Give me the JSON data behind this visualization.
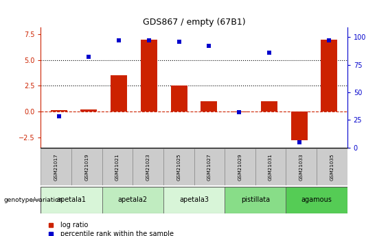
{
  "title": "GDS867 / empty (67B1)",
  "samples": [
    "GSM21017",
    "GSM21019",
    "GSM21021",
    "GSM21023",
    "GSM21025",
    "GSM21027",
    "GSM21029",
    "GSM21031",
    "GSM21033",
    "GSM21035"
  ],
  "log_ratio": [
    0.1,
    0.2,
    3.5,
    7.0,
    2.5,
    1.0,
    -0.05,
    1.0,
    -2.8,
    7.0
  ],
  "percentile_rank": [
    28,
    82,
    97,
    97,
    96,
    92,
    32,
    86,
    5,
    97
  ],
  "groups": [
    {
      "label": "apetala1",
      "indices": [
        0,
        1
      ],
      "color": "#d8f5d8"
    },
    {
      "label": "apetala2",
      "indices": [
        2,
        3
      ],
      "color": "#c0ecc0"
    },
    {
      "label": "apetala3",
      "indices": [
        4,
        5
      ],
      "color": "#d8f5d8"
    },
    {
      "label": "pistillata",
      "indices": [
        6,
        7
      ],
      "color": "#88dd88"
    },
    {
      "label": "agamous",
      "indices": [
        8,
        9
      ],
      "color": "#55cc55"
    }
  ],
  "bar_color": "#cc2200",
  "dot_color": "#0000cc",
  "ylim_left": [
    -3.5,
    8.2
  ],
  "ylim_right": [
    0,
    109
  ],
  "yticks_left": [
    -2.5,
    0.0,
    2.5,
    5.0,
    7.5
  ],
  "yticks_right": [
    0,
    25,
    50,
    75,
    100
  ],
  "hlines_dotted": [
    2.5,
    5.0
  ],
  "hline_dashed": 0.0,
  "sample_box_color": "#cccccc",
  "sample_box_edge": "#888888"
}
